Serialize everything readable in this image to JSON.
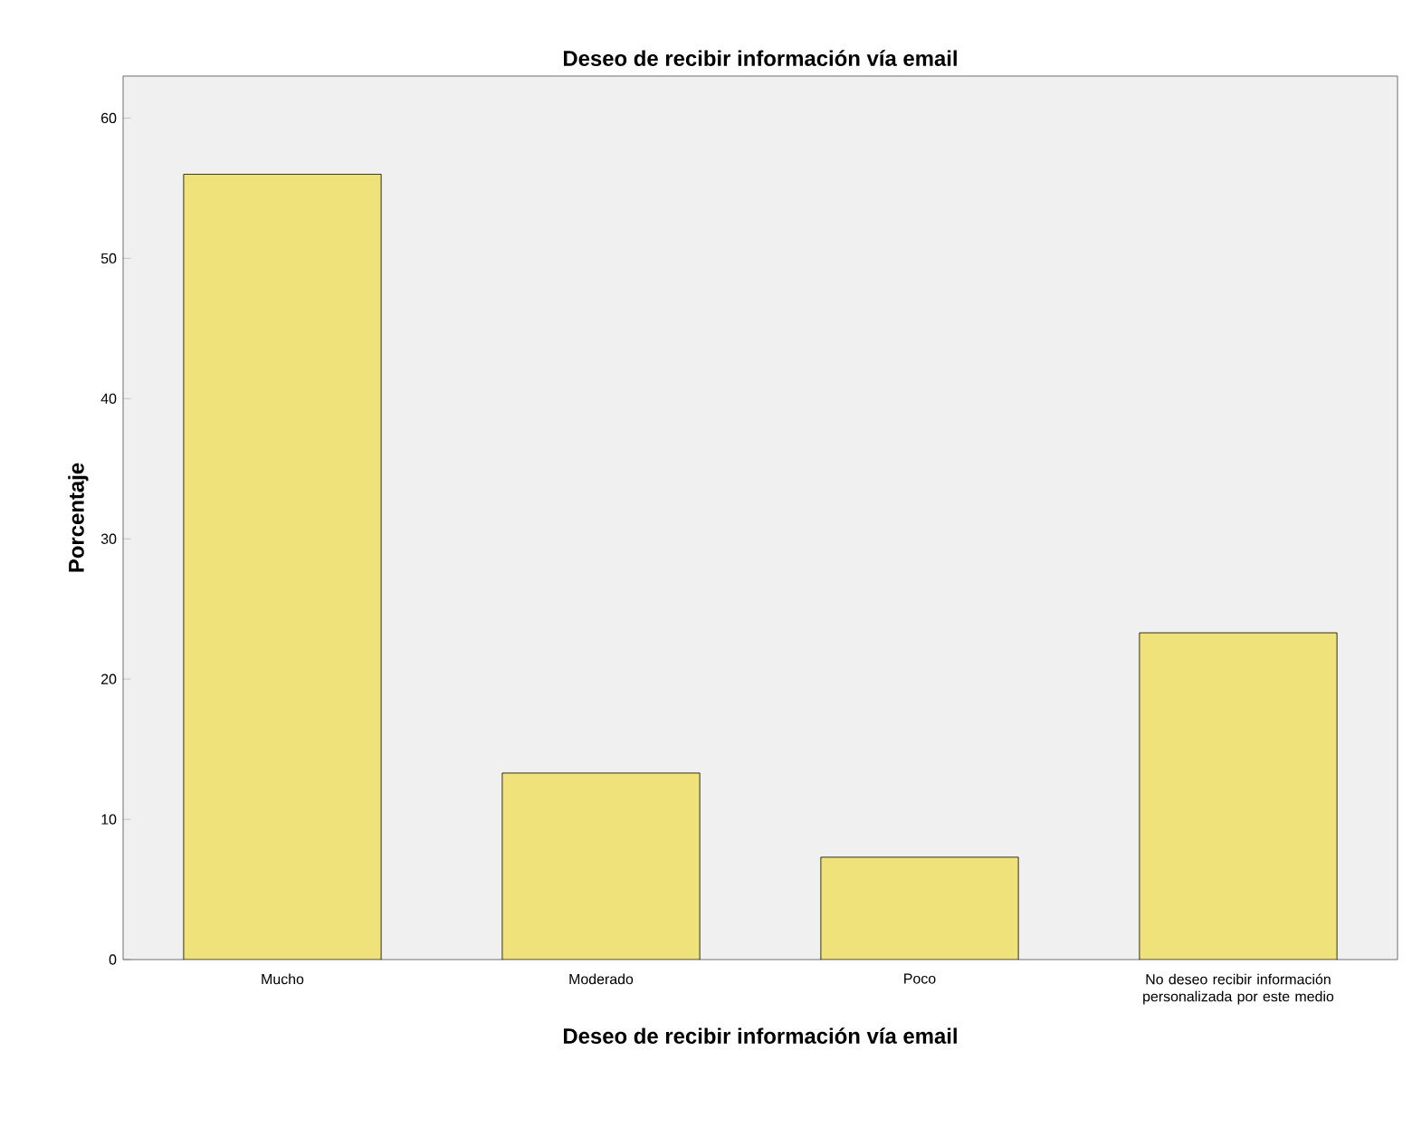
{
  "chart_data": {
    "type": "bar",
    "title": "Deseo de recibir información vía email",
    "xlabel": "Deseo de recibir información vía email",
    "ylabel": "Porcentaje",
    "categories": [
      "Mucho",
      "Moderado",
      "Poco",
      "No deseo recibir información personalizada por este medio"
    ],
    "values": [
      56.0,
      13.3,
      7.3,
      23.3
    ],
    "color": "#f0e27a",
    "ylim": [
      0,
      63
    ],
    "yticks": [
      0,
      10,
      20,
      30,
      40,
      50,
      60
    ],
    "grid": false
  }
}
